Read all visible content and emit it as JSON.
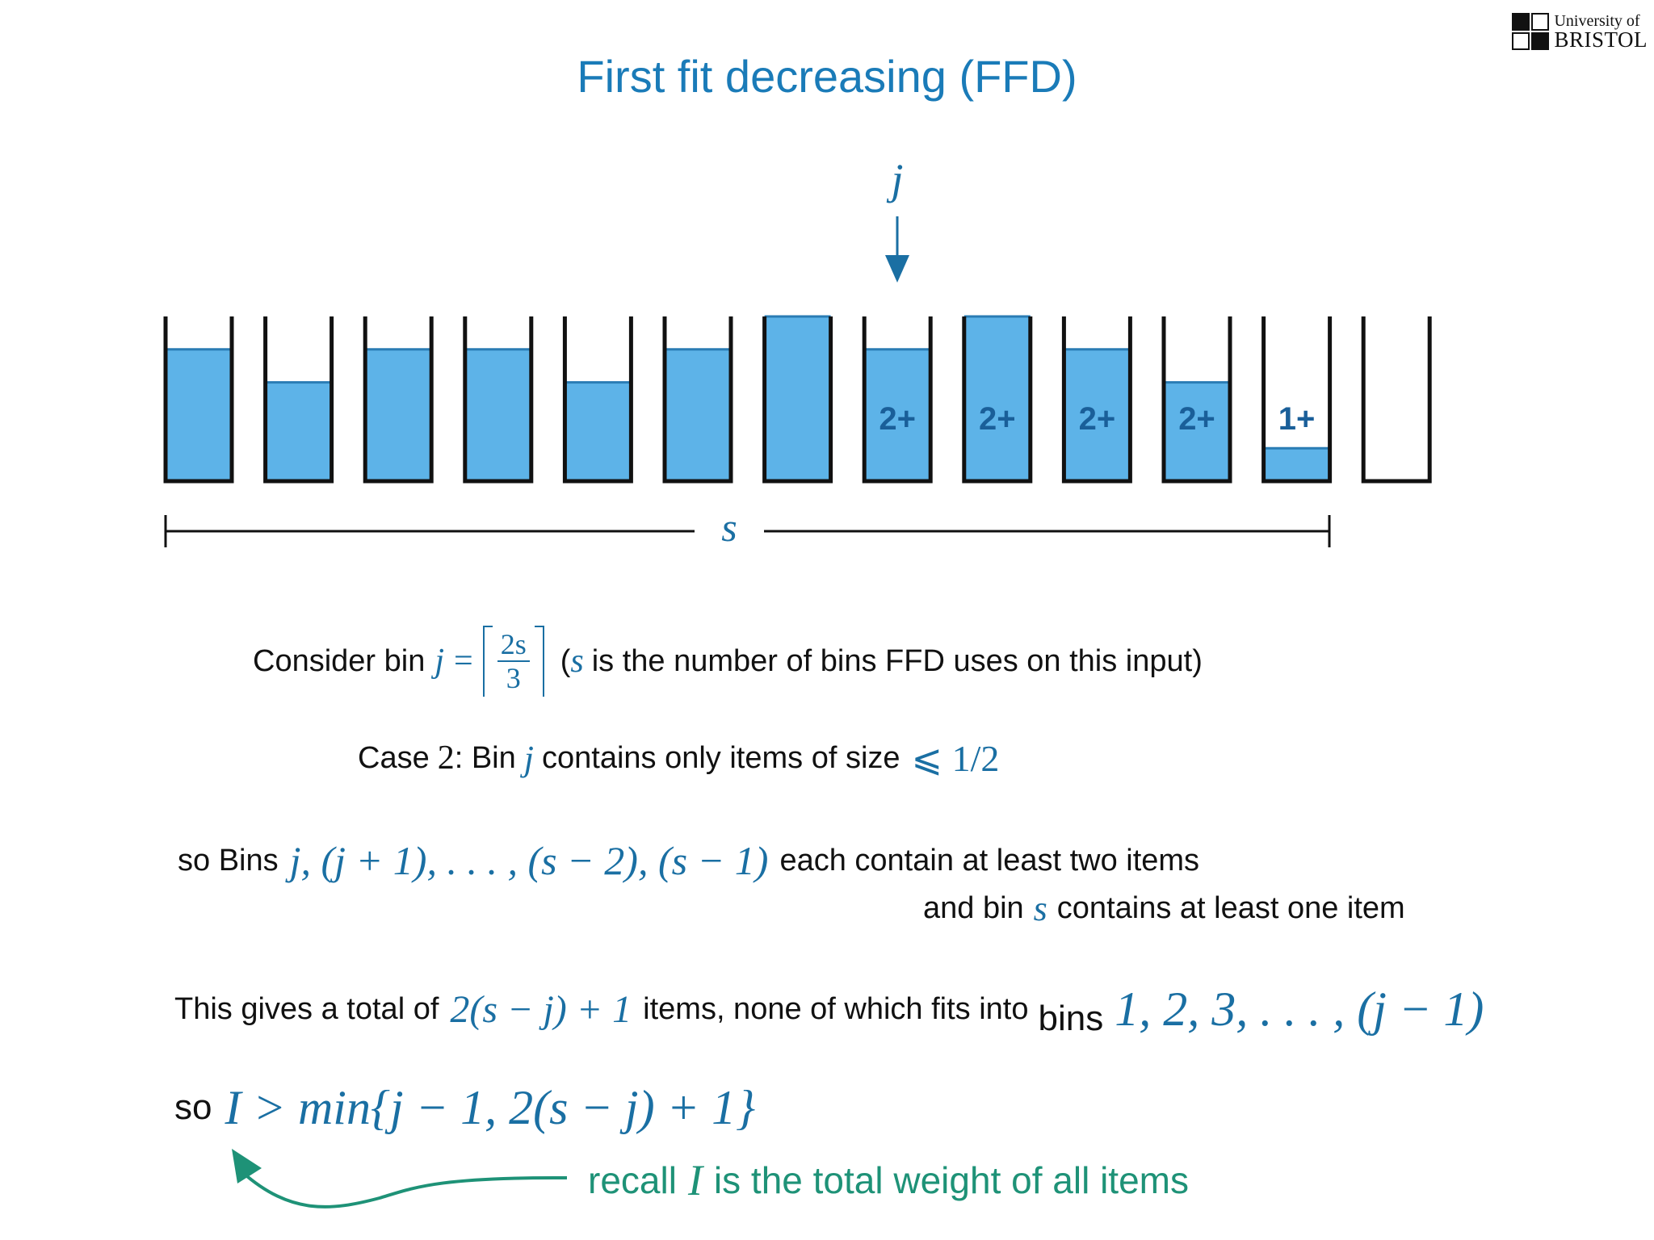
{
  "title": "First fit decreasing (FFD)",
  "logo": {
    "line1": "University of",
    "line2": "BRISTOL"
  },
  "pointer_label": "j",
  "span_label": "s",
  "bins": [
    {
      "fill": 0.8,
      "label": ""
    },
    {
      "fill": 0.6,
      "label": ""
    },
    {
      "fill": 0.8,
      "label": ""
    },
    {
      "fill": 0.8,
      "label": ""
    },
    {
      "fill": 0.6,
      "label": ""
    },
    {
      "fill": 0.8,
      "label": ""
    },
    {
      "fill": 1.0,
      "label": ""
    },
    {
      "fill": 0.8,
      "label": "2+"
    },
    {
      "fill": 1.0,
      "label": "2+"
    },
    {
      "fill": 0.8,
      "label": "2+"
    },
    {
      "fill": 0.6,
      "label": "2+"
    },
    {
      "fill": 0.2,
      "label": "1+"
    },
    {
      "fill": 0.0,
      "label": ""
    }
  ],
  "line1": {
    "prefix": "Consider bin",
    "var": "j",
    "eq": "=",
    "num": "2s",
    "den": "3",
    "paren_open": "(",
    "svar": "s",
    "suffix": "is the number of bins FFD uses on this input)"
  },
  "line2": {
    "prefix": "Case",
    "num": "2",
    "mid": ": Bin",
    "var": "j",
    "suffix": "contains only items of size",
    "math": "⩽ 1/2"
  },
  "line3": {
    "prefix": "so Bins",
    "math": "j, (j + 1), . . . , (s − 2), (s − 1)",
    "suffix": "each contain at least two items"
  },
  "line4": {
    "prefix": "and bin",
    "var": "s",
    "suffix": "contains at least one item"
  },
  "line5": {
    "prefix": "This gives a total of",
    "math": "2(s − j) + 1",
    "mid": "items, none of which fits into",
    "bins_word": "bins",
    "math2": "1, 2, 3, . . . , (j − 1)"
  },
  "line6": {
    "prefix": "so",
    "math": "I > min{j − 1, 2(s − j) + 1}"
  },
  "recall": {
    "prefix": "recall",
    "var": "I",
    "suffix": "is the total weight of all items"
  },
  "colors": {
    "title": "#1a7bb8",
    "bin_fill": "#5db3e8",
    "bin_label": "#1a5f99",
    "math": "#1a6fa3",
    "recall": "#1e9277"
  }
}
